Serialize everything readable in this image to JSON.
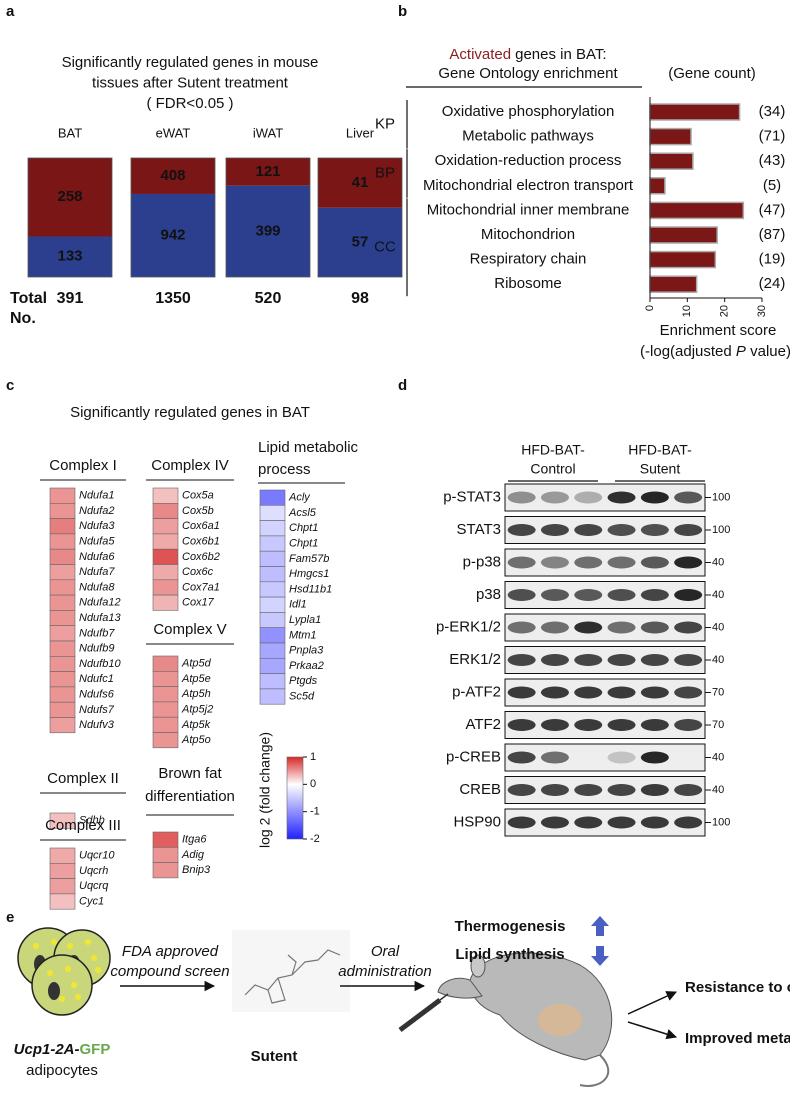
{
  "panel_labels": [
    "a",
    "b",
    "c",
    "d",
    "e"
  ],
  "chart_data": [
    {
      "type": "bar",
      "stacked": "percent",
      "title": [
        "Significantly regulated genes in mouse",
        "tissues after Sutent treatment",
        "( FDR<0.05 )"
      ],
      "categories": [
        "BAT",
        "eWAT",
        "iWAT",
        "Liver"
      ],
      "series": [
        {
          "color": "#2b3f8e",
          "values": [
            133,
            942,
            399,
            57
          ]
        },
        {
          "color": "#7a1616",
          "values": [
            258,
            408,
            121,
            41
          ]
        }
      ],
      "total_label": [
        "Total",
        "No."
      ],
      "totals": [
        391,
        1350,
        520,
        98
      ]
    },
    {
      "type": "bar",
      "orientation": "horizontal",
      "title_highlight": "Activated",
      "title_highlight_color": "#8b1e1e",
      "title": [
        "genes in BAT:",
        "Gene Ontology enrichment"
      ],
      "count_header": "(Gene count)",
      "categories": [
        "Oxidative phosphorylation",
        "Metabolic pathways",
        "Oxidation-reduction process",
        "Mitochondrial electron transport",
        "Mitochondrial inner membrane",
        "Mitochondrion",
        "Respiratory chain",
        "Ribosome"
      ],
      "category_groups": [
        "KP",
        "KP",
        "BP",
        "BP",
        "CC",
        "CC",
        "CC",
        "CC"
      ],
      "values": [
        24,
        11,
        11.5,
        4,
        25,
        18,
        17.5,
        12.5
      ],
      "gene_counts": [
        {
          "value": 34,
          "label": "(34)"
        },
        {
          "value": 71,
          "label": "(71)"
        },
        {
          "value": 43,
          "label": "(43)"
        },
        {
          "value": 5,
          "label": "(5)"
        },
        {
          "value": 47,
          "label": "(47)"
        },
        {
          "value": 87,
          "label": "(87)"
        },
        {
          "value": 19,
          "label": "(19)"
        },
        {
          "value": 24,
          "label": "(24)"
        }
      ],
      "color": "#7b1717",
      "xlim": [
        0,
        30
      ],
      "xticks": [
        0,
        10,
        20,
        30
      ],
      "xlabel": [
        "Enrichment score",
        [
          {
            "text": "(-log(adjusted "
          },
          {
            "text": "P",
            "style": "italic"
          },
          {
            "text": " value))"
          }
        ]
      ]
    }
  ],
  "heatmap": {
    "title": "Significantly regulated genes in BAT",
    "groups": [
      {
        "title": [
          "Complex I"
        ],
        "genes": [
          "Ndufa1",
          "Ndufa2",
          "Ndufa3",
          "Ndufa5",
          "Ndufa6",
          "Ndufa7",
          "Ndufa8",
          "Ndufa12",
          "Ndufa13",
          "Ndufb7",
          "Ndufb9",
          "Ndufb10",
          "Ndufc1",
          "Ndufs6",
          "Ndufs7",
          "Ndufv3"
        ],
        "values": [
          0.5,
          0.5,
          0.6,
          0.5,
          0.55,
          0.45,
          0.5,
          0.5,
          0.5,
          0.45,
          0.5,
          0.5,
          0.5,
          0.5,
          0.5,
          0.45
        ]
      },
      {
        "title": [
          "Complex II"
        ],
        "genes": [
          "Sdhb"
        ],
        "values": [
          0.3
        ]
      },
      {
        "title": [
          "Complex III"
        ],
        "genes": [
          "Uqcr10",
          "Uqcrh",
          "Uqcrq",
          "Cyc1"
        ],
        "values": [
          0.4,
          0.45,
          0.45,
          0.3
        ]
      },
      {
        "title": [
          "Complex IV"
        ],
        "genes": [
          "Cox5a",
          "Cox5b",
          "Cox6a1",
          "Cox6b1",
          "Cox6b2",
          "Cox6c",
          "Cox7a1",
          "Cox17"
        ],
        "values": [
          0.3,
          0.55,
          0.45,
          0.4,
          0.8,
          0.4,
          0.5,
          0.35
        ]
      },
      {
        "title": [
          "Complex V"
        ],
        "genes": [
          "Atp5d",
          "Atp5e",
          "Atp5h",
          "Atp5j2",
          "Atp5k",
          "Atp5o"
        ],
        "values": [
          0.55,
          0.5,
          0.5,
          0.5,
          0.5,
          0.5
        ]
      },
      {
        "title": [
          "Brown fat",
          "differentiation"
        ],
        "genes": [
          "Itga6",
          "Adig",
          "Bnip3"
        ],
        "values": [
          0.75,
          0.5,
          0.5
        ]
      },
      {
        "title": [
          "Lipid metabolic",
          "process"
        ],
        "genes": [
          "Acly",
          "Acsl5",
          "Chpt1",
          "Chpt1",
          "Fam57b",
          "Hmgcs1",
          "Hsd11b1",
          "Idl1",
          "Lypla1",
          "Mtm1",
          "Pnpla3",
          "Prkaa2",
          "Ptgds",
          "Sc5d"
        ],
        "values": [
          -1.2,
          -0.3,
          -0.4,
          -0.5,
          -0.6,
          -0.6,
          -0.5,
          -0.4,
          -0.5,
          -1.0,
          -0.8,
          -0.8,
          -0.6,
          -0.6
        ]
      }
    ],
    "colorbar": {
      "label": "log 2 (fold change)",
      "lim": [
        -2,
        1
      ],
      "ticks": [
        1,
        0,
        -1,
        -2
      ],
      "neg_color": "#2222ff",
      "pos_color": "#d62828",
      "mid_color": "#ffffff"
    }
  },
  "blot": {
    "groups": [
      [
        "HFD-BAT-",
        "Control"
      ],
      [
        "HFD-BAT-",
        "Sutent"
      ]
    ],
    "rows": [
      {
        "protein": "p-STAT3",
        "mw": 100
      },
      {
        "protein": "STAT3",
        "mw": 100
      },
      {
        "protein": "p-p38",
        "mw": 40
      },
      {
        "protein": "p38",
        "mw": 40
      },
      {
        "protein": "p-ERK1/2",
        "mw": 40
      },
      {
        "protein": "ERK1/2",
        "mw": 40
      },
      {
        "protein": "p-ATF2",
        "mw": 70
      },
      {
        "protein": "ATF2",
        "mw": 70
      },
      {
        "protein": "p-CREB",
        "mw": 40
      },
      {
        "protein": "CREB",
        "mw": 40
      },
      {
        "protein": "HSP90",
        "mw": 100
      }
    ]
  },
  "schematic": {
    "cell_label": [
      {
        "text": "Ucp1-2A-",
        "style": "bold-italic"
      },
      {
        "text": "GFP",
        "color": "#6aa84f"
      }
    ],
    "cell_caption": "adipocytes",
    "step1": [
      "FDA approved",
      "compound screen"
    ],
    "drug": "Sutent",
    "step2": [
      "Oral",
      "administration"
    ],
    "effects": [
      {
        "text": "Thermogenesis",
        "direction": "up"
      },
      {
        "text": "Lipid synthesis",
        "direction": "down"
      }
    ],
    "effect_arrow_color": "#4a5fc1",
    "outcomes": [
      "Resistance to obesity",
      "Improved metabolism"
    ]
  }
}
